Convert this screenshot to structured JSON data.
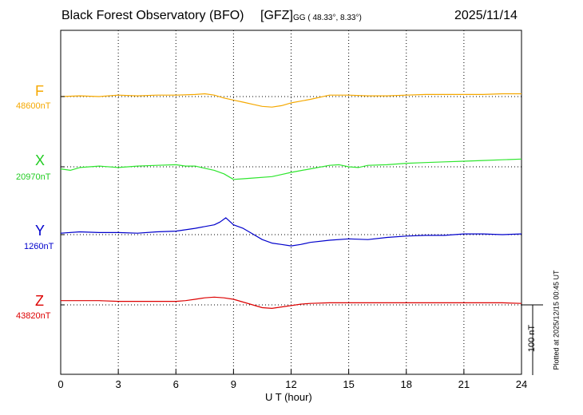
{
  "header": {
    "title": "Black Forest Observatory (BFO)",
    "org": "[GFZ]",
    "coords": "GG ( 48.33°,   8.33°)",
    "date": "2025/11/14"
  },
  "footer": {
    "plotted": "Plotted at 2025/12/15 00:45 UT"
  },
  "chart_data": {
    "type": "line",
    "xlabel": "U T (hour)",
    "xlim": [
      0,
      24
    ],
    "xticks": [
      0,
      3,
      6,
      9,
      12,
      15,
      18,
      21,
      24
    ],
    "scale_bar_label": "100 nT",
    "grid": true,
    "series": [
      {
        "name": "F",
        "baseline_label": "48600nT",
        "color": "#f5a800",
        "x": [
          0,
          1,
          2,
          3,
          4,
          5,
          6,
          7,
          7.5,
          8,
          8.5,
          9,
          9.5,
          10,
          10.5,
          11,
          11.5,
          12,
          13,
          14,
          15,
          16,
          17,
          18,
          19,
          20,
          21,
          22,
          23,
          24
        ],
        "y": [
          0,
          1,
          0,
          2,
          1,
          2,
          2,
          3,
          4,
          2,
          -2,
          -5,
          -8,
          -11,
          -14,
          -15,
          -13,
          -9,
          -4,
          2,
          2,
          1,
          1,
          2,
          3,
          3,
          3,
          3,
          4,
          4
        ]
      },
      {
        "name": "X",
        "baseline_label": "20970nT",
        "color": "#2ee62e",
        "x": [
          0,
          0.5,
          1,
          2,
          3,
          4,
          5,
          6,
          6.5,
          7,
          7.5,
          8,
          8.5,
          9,
          9.5,
          10,
          11,
          11.5,
          12,
          13,
          14,
          14.5,
          15,
          15.5,
          16,
          17,
          18,
          19,
          20,
          21,
          22,
          23,
          24
        ],
        "y": [
          -3,
          -5,
          -1,
          1,
          -1,
          1,
          2,
          3,
          1,
          1,
          -2,
          -5,
          -10,
          -18,
          -17,
          -16,
          -14,
          -11,
          -8,
          -3,
          2,
          3,
          0,
          -1,
          2,
          3,
          5,
          6,
          7,
          8,
          9,
          10,
          11
        ]
      },
      {
        "name": "Y",
        "baseline_label": "1260nT",
        "color": "#0000cc",
        "x": [
          0,
          1,
          2,
          3,
          4,
          5,
          6,
          7,
          8,
          8.3,
          8.6,
          9,
          9.5,
          10,
          10.5,
          11,
          11.5,
          12,
          12.5,
          13,
          14,
          15,
          16,
          17,
          18,
          19,
          20,
          21,
          22,
          23,
          24
        ],
        "y": [
          2,
          4,
          3,
          3,
          2,
          4,
          5,
          9,
          14,
          18,
          24,
          14,
          9,
          1,
          -7,
          -12,
          -14,
          -16,
          -14,
          -11,
          -8,
          -6,
          -7,
          -4,
          -2,
          -1,
          -1,
          1,
          1,
          0,
          1
        ]
      },
      {
        "name": "Z",
        "baseline_label": "43820nT",
        "color": "#dd0000",
        "x": [
          0,
          1,
          2,
          3,
          4,
          5,
          6,
          6.5,
          7,
          7.5,
          8,
          8.5,
          9,
          9.5,
          10,
          10.5,
          11,
          11.5,
          12,
          12.5,
          13,
          14,
          15,
          16,
          17,
          18,
          19,
          20,
          21,
          22,
          23,
          24
        ],
        "y": [
          6,
          6,
          6,
          5,
          5,
          5,
          5,
          6,
          8,
          10,
          11,
          10,
          8,
          4,
          0,
          -4,
          -5,
          -3,
          -1,
          1,
          2,
          3,
          3,
          3,
          3,
          3,
          3,
          3,
          3,
          3,
          3,
          2
        ]
      }
    ]
  }
}
